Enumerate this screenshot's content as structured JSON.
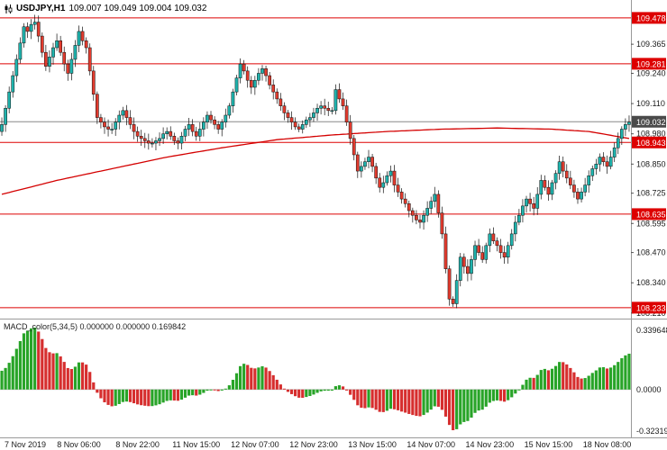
{
  "header": {
    "symbol": "USDJPY,H1",
    "ohlc": "109.007 109.049 109.004 109.032"
  },
  "chart_data": {
    "type": "candlestick",
    "title": "USDJPY,H1",
    "open": 109.007,
    "high": 109.049,
    "low": 109.004,
    "close": 109.032,
    "price_max": 109.555,
    "price_min": 108.19,
    "first_open": 108.99,
    "price_axis_ticks": [
      109.365,
      109.24,
      109.11,
      108.98,
      108.85,
      108.725,
      108.595,
      108.47,
      108.34,
      108.21
    ],
    "hlines": [
      109.478,
      109.281,
      108.943,
      108.635,
      108.233
    ],
    "current_price": 109.032,
    "x_labels": [
      "7 Nov 2019",
      "8 Nov 06:00",
      "8 Nov 22:00",
      "11 Nov 15:00",
      "12 Nov 07:00",
      "12 Nov 23:00",
      "13 Nov 15:00",
      "14 Nov 07:00",
      "14 Nov 23:00",
      "15 Nov 15:00",
      "18 Nov 08:00"
    ],
    "x_label_indices": [
      5,
      21,
      37,
      53,
      69,
      85,
      101,
      117,
      133,
      149,
      165
    ],
    "closes": [
      109.02,
      109.09,
      109.16,
      109.23,
      109.3,
      109.37,
      109.44,
      109.42,
      109.45,
      109.46,
      109.4,
      109.33,
      109.27,
      109.31,
      109.35,
      109.38,
      109.33,
      109.28,
      109.24,
      109.3,
      109.36,
      109.42,
      109.38,
      109.35,
      109.25,
      109.15,
      109.05,
      109.03,
      109.01,
      109.0,
      109.0,
      109.03,
      109.06,
      109.08,
      109.05,
      109.02,
      108.99,
      108.97,
      108.96,
      108.95,
      108.94,
      108.94,
      108.95,
      108.96,
      108.98,
      108.99,
      108.97,
      108.95,
      108.94,
      108.97,
      109.0,
      109.02,
      108.99,
      108.97,
      109.0,
      109.03,
      109.06,
      109.04,
      109.02,
      109.0,
      109.03,
      109.06,
      109.1,
      109.16,
      109.22,
      109.28,
      109.25,
      109.21,
      109.18,
      109.21,
      109.24,
      109.26,
      109.23,
      109.19,
      109.16,
      109.13,
      109.1,
      109.07,
      109.05,
      109.03,
      109.01,
      109.0,
      109.02,
      109.04,
      109.05,
      109.07,
      109.09,
      109.1,
      109.09,
      109.08,
      109.08,
      109.17,
      109.13,
      109.1,
      109.03,
      108.96,
      108.89,
      108.82,
      108.84,
      108.86,
      108.88,
      108.84,
      108.79,
      108.75,
      108.77,
      108.8,
      108.82,
      108.76,
      108.73,
      108.7,
      108.68,
      108.65,
      108.63,
      108.61,
      108.6,
      108.63,
      108.66,
      108.69,
      108.72,
      108.64,
      108.55,
      108.4,
      108.27,
      108.25,
      108.35,
      108.45,
      108.41,
      108.38,
      108.44,
      108.5,
      108.47,
      108.44,
      108.5,
      108.55,
      108.52,
      108.5,
      108.47,
      108.45,
      108.5,
      108.55,
      108.6,
      108.63,
      108.67,
      108.7,
      108.68,
      108.66,
      108.72,
      108.78,
      108.75,
      108.72,
      108.77,
      108.81,
      108.86,
      108.82,
      108.79,
      108.76,
      108.73,
      108.7,
      108.73,
      108.76,
      108.8,
      108.83,
      108.85,
      108.88,
      108.86,
      108.84,
      108.88,
      108.92,
      108.96,
      109.0,
      109.02,
      109.03
    ],
    "ma_anchors": [
      [
        0,
        108.72
      ],
      [
        15,
        108.78
      ],
      [
        30,
        108.83
      ],
      [
        45,
        108.88
      ],
      [
        60,
        108.92
      ],
      [
        75,
        108.955
      ],
      [
        90,
        108.975
      ],
      [
        105,
        108.99
      ],
      [
        120,
        109.0
      ],
      [
        135,
        109.005
      ],
      [
        150,
        109.0
      ],
      [
        160,
        108.99
      ],
      [
        171,
        108.96
      ]
    ],
    "macd": {
      "label": "MACD_color(5,34,5) 0.000000 0.000000 0.169842",
      "fast": 5,
      "slow": 34,
      "signal": 5,
      "axis_max_label": "0.339648",
      "axis_zero_label": "0.0000",
      "axis_min_label": "-0.323194"
    },
    "colors": {
      "up": "#1fb3ad",
      "down": "#e23b2e",
      "macd_up": "#28a428",
      "macd_down": "#d62e2e",
      "hline": "#dd0000",
      "ma": "#d40000",
      "current_box": "#4a4a4a",
      "axis_text": "#1a1a1a"
    }
  }
}
